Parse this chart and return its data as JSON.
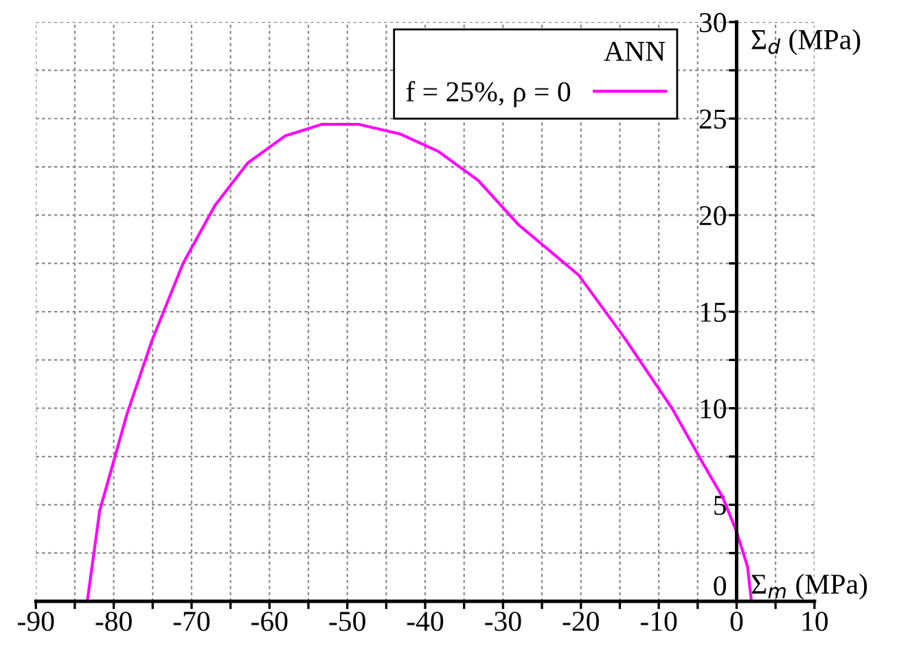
{
  "chart_data": {
    "type": "line",
    "xlabel": "Σ$_{m}$ (MPa)",
    "ylabel": "Σ$_{d}$ (MPa)",
    "legend_title": "ANN",
    "legend": "top right",
    "grid": true,
    "line_style": "solid",
    "marker": "none",
    "xlim": [
      -90,
      10
    ],
    "ylim": [
      0,
      30
    ],
    "xticks": [
      -90,
      {
        "value": -85,
        "label": null
      },
      -80,
      {
        "value": -75,
        "label": null
      },
      -70,
      {
        "value": -65,
        "label": null
      },
      -60,
      {
        "value": -55,
        "label": null
      },
      -50,
      {
        "value": -45,
        "label": null
      },
      -40,
      {
        "value": -35,
        "label": null
      },
      -30,
      {
        "value": -25,
        "label": null
      },
      -20,
      {
        "value": -15,
        "label": null
      },
      -10,
      {
        "value": -5,
        "label": null
      },
      0,
      {
        "value": 5,
        "label": null
      },
      10
    ],
    "yticks": [
      0,
      {
        "value": 2.5,
        "label": null
      },
      5,
      {
        "value": 7.5,
        "label": null
      },
      10,
      {
        "value": 12.5,
        "label": null
      },
      15,
      {
        "value": 17.5,
        "label": null
      },
      20,
      {
        "value": 22.5,
        "label": null
      },
      25,
      {
        "value": 27.5,
        "label": null
      },
      30
    ],
    "series": [
      {
        "name": "f = 25%, ρ = 0",
        "color": "#ff00ff",
        "x": [
          -83.4,
          -81.8,
          -78.3,
          -75.1,
          -71.1,
          -67.0,
          -62.8,
          -58.0,
          -53.3,
          -48.5,
          -43.2,
          -38.3,
          -33.2,
          -28.0,
          -20.3,
          -14.5,
          -8.3,
          -4.4,
          -1.8,
          0,
          1.4,
          1.9
        ],
        "values": [
          0,
          4.7,
          9.7,
          13.5,
          17.5,
          20.5,
          22.7,
          24.1,
          24.7,
          24.7,
          24.2,
          23.3,
          21.8,
          19.5,
          16.9,
          13.7,
          10.0,
          7.2,
          5.4,
          3.6,
          1.8,
          0
        ]
      }
    ]
  }
}
